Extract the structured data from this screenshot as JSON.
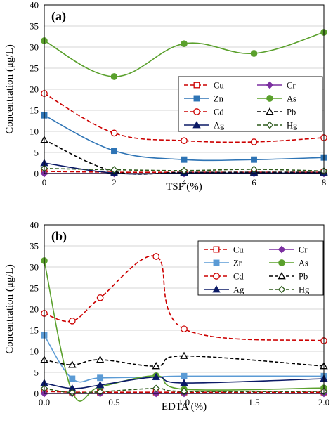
{
  "chart_data": [
    {
      "type": "line",
      "panel_label": "(a)",
      "xlabel": "TSP (%)",
      "ylabel": "Concentration (μg/L)",
      "xlim": [
        0,
        8
      ],
      "ylim": [
        0,
        40
      ],
      "xticks": [
        "0",
        "2",
        "4",
        "6",
        "8"
      ],
      "xtick_values": [
        0,
        2,
        4,
        6,
        8
      ],
      "yticks": [
        "0",
        "5",
        "10",
        "15",
        "20",
        "25",
        "30",
        "35",
        "40"
      ],
      "ytick_values": [
        0,
        5,
        10,
        15,
        20,
        25,
        30,
        35,
        40
      ],
      "grid": "horizontal",
      "legend_position": "center-right",
      "x": [
        0,
        2,
        4,
        6,
        8
      ],
      "series": [
        {
          "name": "Cu",
          "values": [
            0.5,
            0.3,
            0.3,
            0.3,
            0.3
          ],
          "color": "#cc0000",
          "dash": "6,3",
          "marker": "square-open",
          "smooth": false
        },
        {
          "name": "Cr",
          "values": [
            0.0,
            0.0,
            0.0,
            0.0,
            0.0
          ],
          "color": "#7b2fa0",
          "dash": "",
          "marker": "diamond-filled",
          "smooth": true
        },
        {
          "name": "Zn",
          "values": [
            13.8,
            5.4,
            3.3,
            3.3,
            3.8
          ],
          "color": "#2e74b5",
          "dash": "",
          "marker": "square-filled",
          "smooth": true
        },
        {
          "name": "As",
          "values": [
            31.5,
            23.0,
            30.8,
            28.5,
            33.5
          ],
          "color": "#5aa02c",
          "dash": "",
          "marker": "circle-filled",
          "smooth": true
        },
        {
          "name": "Cd",
          "values": [
            19.0,
            9.6,
            7.8,
            7.5,
            8.5
          ],
          "color": "#cc0000",
          "dash": "6,3",
          "marker": "circle-open",
          "smooth": true
        },
        {
          "name": "Pb",
          "values": [
            8.0,
            0.5,
            0.3,
            0.3,
            0.3
          ],
          "color": "#000000",
          "dash": "5,3",
          "marker": "triangle-open",
          "smooth": true
        },
        {
          "name": "Ag",
          "values": [
            2.5,
            0.1,
            0.1,
            0.1,
            0.1
          ],
          "color": "#0b1a66",
          "dash": "",
          "marker": "triangle-filled",
          "smooth": true
        },
        {
          "name": "Hg",
          "values": [
            1.2,
            0.9,
            0.7,
            1.0,
            0.6
          ],
          "color": "#2d5a1b",
          "dash": "5,3",
          "marker": "diamond-open",
          "smooth": true
        }
      ]
    },
    {
      "type": "line",
      "panel_label": "(b)",
      "xlabel": "EDTA (%)",
      "ylabel": "Concentration (μg/L)",
      "xlim": [
        0,
        2
      ],
      "ylim": [
        0,
        40
      ],
      "xticks": [
        "0.0",
        "0.5",
        "1.0",
        "1.5",
        "2.0"
      ],
      "xtick_values": [
        0,
        0.5,
        1.0,
        1.5,
        2.0
      ],
      "yticks": [
        "0",
        "5",
        "10",
        "15",
        "20",
        "25",
        "30",
        "35",
        "40"
      ],
      "ytick_values": [
        0,
        5,
        10,
        15,
        20,
        25,
        30,
        35,
        40
      ],
      "grid": "horizontal",
      "legend_position": "top-right",
      "x": [
        0.0,
        0.2,
        0.4,
        0.8,
        1.0,
        2.0
      ],
      "series": [
        {
          "name": "Cu",
          "values": [
            0.5,
            0.3,
            0.3,
            0.3,
            0.3,
            0.3
          ],
          "color": "#cc0000",
          "dash": "6,3",
          "marker": "square-open",
          "smooth": false
        },
        {
          "name": "Cr",
          "values": [
            0.0,
            0.0,
            0.0,
            0.0,
            0.0,
            0.0
          ],
          "color": "#7b2fa0",
          "dash": "",
          "marker": "diamond-filled",
          "smooth": true
        },
        {
          "name": "Zn",
          "values": [
            13.8,
            3.5,
            3.7,
            3.9,
            4.1,
            4.1
          ],
          "color": "#5b9bd5",
          "dash": "",
          "marker": "square-filled",
          "smooth": true
        },
        {
          "name": "As",
          "values": [
            31.5,
            0.4,
            1.6,
            4.2,
            1.0,
            1.3
          ],
          "color": "#5aa02c",
          "dash": "",
          "marker": "circle-filled",
          "smooth": true
        },
        {
          "name": "Cd",
          "values": [
            19.0,
            17.2,
            22.7,
            32.5,
            15.3,
            12.5
          ],
          "color": "#cc0000",
          "dash": "6,3",
          "marker": "circle-open",
          "smooth": true
        },
        {
          "name": "Pb",
          "values": [
            8.0,
            6.8,
            8.0,
            6.5,
            8.9,
            6.5
          ],
          "color": "#000000",
          "dash": "5,3",
          "marker": "triangle-open",
          "smooth": true
        },
        {
          "name": "Ag",
          "values": [
            2.5,
            1.2,
            2.0,
            3.9,
            2.5,
            3.5
          ],
          "color": "#0b1a66",
          "dash": "",
          "marker": "triangle-filled",
          "smooth": true
        },
        {
          "name": "Hg",
          "values": [
            1.2,
            0.2,
            0.4,
            1.2,
            0.5,
            0.5
          ],
          "color": "#2d5a1b",
          "dash": "5,3",
          "marker": "diamond-open",
          "smooth": true
        }
      ]
    }
  ]
}
